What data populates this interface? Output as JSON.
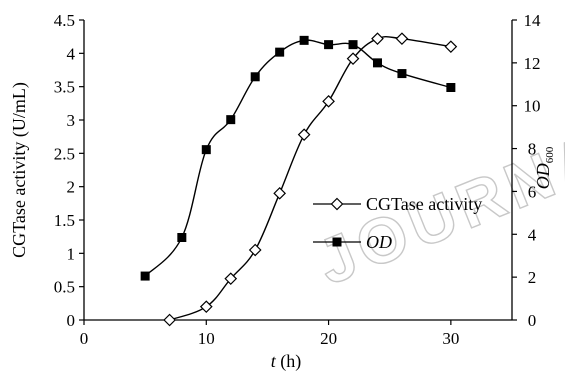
{
  "chart_data": {
    "type": "line",
    "x_axis": {
      "label_prefix": "t",
      "label_suffix": " (h)",
      "min": 0,
      "max": 35,
      "ticks": [
        0,
        10,
        20,
        30
      ]
    },
    "y_left": {
      "label": "CGTase activity (U/mL)",
      "min": 0,
      "max": 4.5,
      "ticks": [
        "0",
        "0.5",
        "1",
        "1.5",
        "2",
        "2.5",
        "3",
        "3.5",
        "4",
        "4.5"
      ]
    },
    "y_right": {
      "label_main": "OD",
      "label_sub": "600",
      "min": 0,
      "max": 14,
      "ticks": [
        0,
        2,
        4,
        6,
        8,
        10,
        12,
        14
      ]
    },
    "series": [
      {
        "name": "CGTase activity",
        "axis": "left",
        "marker": "diamond-open",
        "x": [
          7,
          10,
          12,
          14,
          16,
          18,
          20,
          22,
          24,
          26,
          30
        ],
        "y": [
          0.0,
          0.2,
          0.62,
          1.05,
          1.9,
          2.78,
          3.28,
          3.92,
          4.22,
          4.22,
          4.1
        ]
      },
      {
        "name": "OD",
        "axis": "right",
        "marker": "square-filled",
        "x": [
          5,
          8,
          10,
          12,
          14,
          16,
          18,
          20,
          22,
          24,
          26,
          30
        ],
        "y": [
          2.05,
          3.85,
          7.95,
          9.35,
          11.35,
          12.5,
          13.05,
          12.85,
          12.85,
          12.0,
          11.5,
          10.85
        ]
      }
    ],
    "legend": {
      "placement": "right-middle",
      "entries": [
        {
          "series": 0,
          "label": "CGTase activity",
          "italic": false
        },
        {
          "series": 1,
          "label": "OD",
          "italic": true
        }
      ]
    },
    "grid": false,
    "watermark": "JOURNAL"
  }
}
